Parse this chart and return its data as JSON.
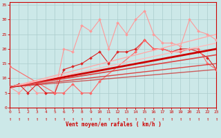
{
  "bg_color": "#cce8e8",
  "grid_color": "#aacccc",
  "xlabel": "Vent moyen/en rafales ( km/h )",
  "xlabel_color": "#cc0000",
  "tick_color": "#cc0000",
  "ylim": [
    0,
    36
  ],
  "xlim": [
    0,
    23
  ],
  "yticks": [
    0,
    5,
    10,
    15,
    20,
    25,
    30,
    35
  ],
  "xticks": [
    0,
    1,
    2,
    3,
    4,
    5,
    6,
    7,
    8,
    9,
    10,
    11,
    12,
    13,
    14,
    15,
    16,
    17,
    18,
    19,
    20,
    21,
    22,
    23
  ],
  "series": [
    {
      "x": [
        0,
        1,
        2,
        3,
        4,
        5,
        6,
        7,
        8,
        9,
        10,
        11,
        12,
        13,
        14,
        15,
        16,
        17,
        18,
        19,
        20,
        21,
        22,
        23
      ],
      "y": [
        7,
        5,
        8,
        5,
        5,
        5,
        20,
        19,
        28,
        26,
        30,
        20,
        29,
        25,
        30,
        33,
        25,
        22,
        22,
        21,
        30,
        26,
        25,
        23
      ],
      "color": "#ff9999",
      "lw": 0.8,
      "marker": "D",
      "ms": 2.0,
      "alpha": 1.0
    },
    {
      "x": [
        0,
        1,
        2,
        3,
        4,
        5,
        6,
        7,
        8,
        9,
        10,
        11,
        12,
        13,
        14,
        15,
        16,
        17,
        18,
        19,
        20,
        21,
        22,
        23
      ],
      "y": [
        7,
        8,
        5,
        8,
        5,
        5,
        13,
        14,
        15,
        17,
        19,
        15,
        19,
        19,
        20,
        23,
        20,
        20,
        19,
        20,
        20,
        19,
        17,
        13
      ],
      "color": "#dd2222",
      "lw": 0.8,
      "marker": "D",
      "ms": 2.0,
      "alpha": 1.0
    },
    {
      "x": [
        0,
        5,
        6,
        7,
        8,
        9,
        10,
        14,
        15,
        16,
        17,
        18,
        19,
        20,
        21,
        22,
        23
      ],
      "y": [
        14,
        5,
        5,
        8,
        5,
        5,
        9,
        19,
        23,
        20,
        20,
        19,
        19,
        20,
        20,
        15,
        13
      ],
      "color": "#ff6666",
      "lw": 0.8,
      "marker": "D",
      "ms": 2.0,
      "alpha": 1.0
    },
    {
      "x": [
        0,
        23
      ],
      "y": [
        7,
        20
      ],
      "color": "#cc0000",
      "lw": 2.0,
      "marker": null,
      "ms": 0,
      "alpha": 1.0
    },
    {
      "x": [
        0,
        23
      ],
      "y": [
        7,
        18
      ],
      "color": "#dd4444",
      "lw": 1.2,
      "marker": null,
      "ms": 0,
      "alpha": 1.0
    },
    {
      "x": [
        0,
        23
      ],
      "y": [
        7,
        25
      ],
      "color": "#ffaaaa",
      "lw": 1.0,
      "marker": null,
      "ms": 0,
      "alpha": 1.0
    },
    {
      "x": [
        0,
        23
      ],
      "y": [
        7,
        22
      ],
      "color": "#ffbbbb",
      "lw": 1.0,
      "marker": null,
      "ms": 0,
      "alpha": 1.0
    },
    {
      "x": [
        0,
        23
      ],
      "y": [
        7,
        15
      ],
      "color": "#dd3333",
      "lw": 1.0,
      "marker": null,
      "ms": 0,
      "alpha": 0.9
    },
    {
      "x": [
        0,
        23
      ],
      "y": [
        7,
        13
      ],
      "color": "#cc2222",
      "lw": 1.0,
      "marker": null,
      "ms": 0,
      "alpha": 0.7
    }
  ],
  "arrow_symbol": "↑",
  "arrow_color": "#cc0000",
  "arrow_fontsize": 5
}
